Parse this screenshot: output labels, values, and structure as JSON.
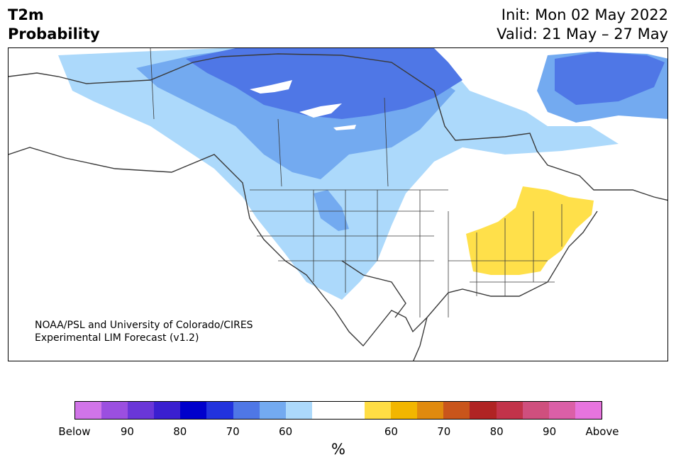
{
  "header": {
    "variable": "T2m",
    "subtitle": "Probability",
    "init": "Init: Mon 02 May 2022",
    "valid": "Valid: 21 May – 27 May"
  },
  "credit": {
    "line1": "NOAA/PSL and University of Colorado/CIRES",
    "line2": "Experimental LIM Forecast (v1.2)"
  },
  "colorbar": {
    "colors": [
      "#d174e8",
      "#9b4fe0",
      "#6a36d8",
      "#3a1fd0",
      "#0000cc",
      "#2233dd",
      "#4f77e6",
      "#73aaf0",
      "#acd9fb",
      "#ffffff",
      "#ffffff",
      "#ffdd44",
      "#f2b600",
      "#e08a0e",
      "#c9551b",
      "#b02323",
      "#c2334a",
      "#cf4f7e",
      "#db5fa7",
      "#e774de"
    ],
    "tick_labels": [
      "Below",
      "90",
      "80",
      "70",
      "60",
      "60",
      "70",
      "80",
      "90",
      "Above"
    ],
    "unit": "%"
  },
  "map_colors": {
    "light_blue": "#acd9fb",
    "mid_blue": "#73aaf0",
    "dark_blue": "#4f77e6",
    "yellow": "#ffe04a",
    "border": "#3a3a3a"
  }
}
